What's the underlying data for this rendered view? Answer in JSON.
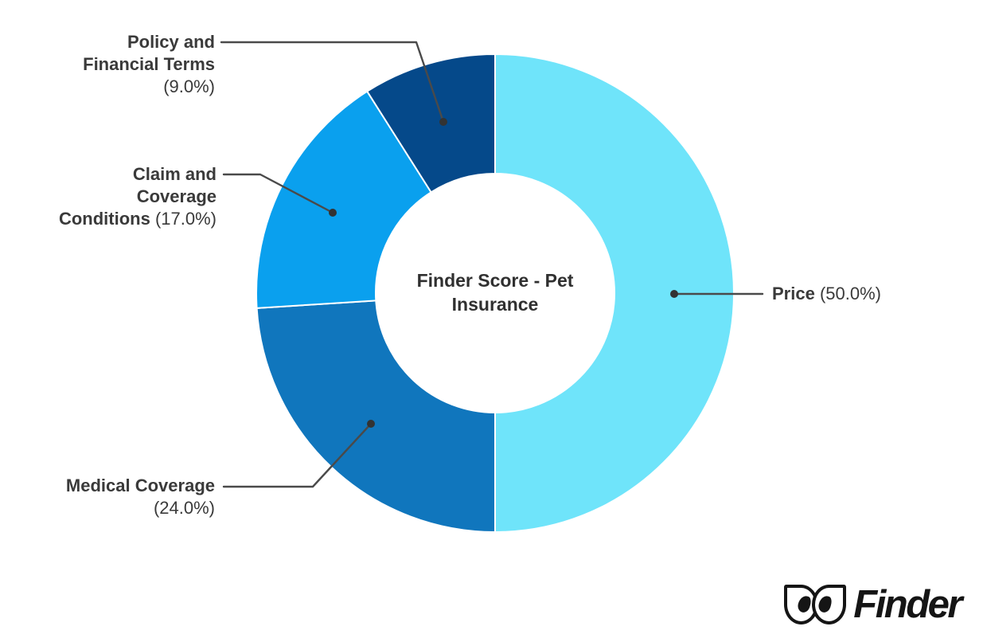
{
  "chart_data": {
    "type": "donut",
    "center_title": "Finder Score - Pet Insurance",
    "direction": "clockwise",
    "start_angle_deg": 0,
    "inner_radius_ratio": 0.5,
    "legend_position": "callout-labels",
    "segments": [
      {
        "label": "Price",
        "value": 50.0,
        "display": "Price (50.0%)",
        "color": "#6FE4FA"
      },
      {
        "label": "Medical Coverage",
        "value": 24.0,
        "display": "Medical Coverage (24.0%)",
        "color": "#1076BD"
      },
      {
        "label": "Claim and Coverage Conditions",
        "value": 17.0,
        "display": "Claim and Coverage Conditions (17.0%)",
        "color": "#0AA0EE"
      },
      {
        "label": "Policy and Financial Terms",
        "value": 9.0,
        "display": "Policy and Financial Terms (9.0%)",
        "color": "#05498A"
      }
    ],
    "callouts": [
      {
        "segment": "Price",
        "align": "left",
        "lines": [
          [
            {
              "text": "Price",
              "bold": true
            },
            {
              "text": " (50.0%)",
              "bold": false
            }
          ]
        ]
      },
      {
        "segment": "Medical Coverage",
        "align": "right",
        "lines": [
          [
            {
              "text": "Medical Coverage",
              "bold": true
            }
          ],
          [
            {
              "text": "(24.0%)",
              "bold": false
            }
          ]
        ]
      },
      {
        "segment": "Claim and Coverage Conditions",
        "align": "right",
        "lines": [
          [
            {
              "text": "Claim and",
              "bold": true
            }
          ],
          [
            {
              "text": "Coverage",
              "bold": true
            }
          ],
          [
            {
              "text": "Conditions",
              "bold": true
            },
            {
              "text": " (17.0%)",
              "bold": false
            }
          ]
        ]
      },
      {
        "segment": "Policy and Financial Terms",
        "align": "right",
        "lines": [
          [
            {
              "text": "Policy and",
              "bold": true
            }
          ],
          [
            {
              "text": "Financial Terms",
              "bold": true
            }
          ],
          [
            {
              "text": "(9.0%)",
              "bold": false
            }
          ]
        ]
      }
    ]
  },
  "logo": {
    "text": "Finder",
    "mark": "finder-eyes-icon"
  },
  "colors": {
    "page_bg": "#ffffff",
    "label_text": "#3a3a3a",
    "leader_line": "#4a4a4a",
    "leader_dot": "#333333",
    "center_text": "#303030",
    "logo_ink": "#151515",
    "segment_gap": "#ffffff"
  }
}
